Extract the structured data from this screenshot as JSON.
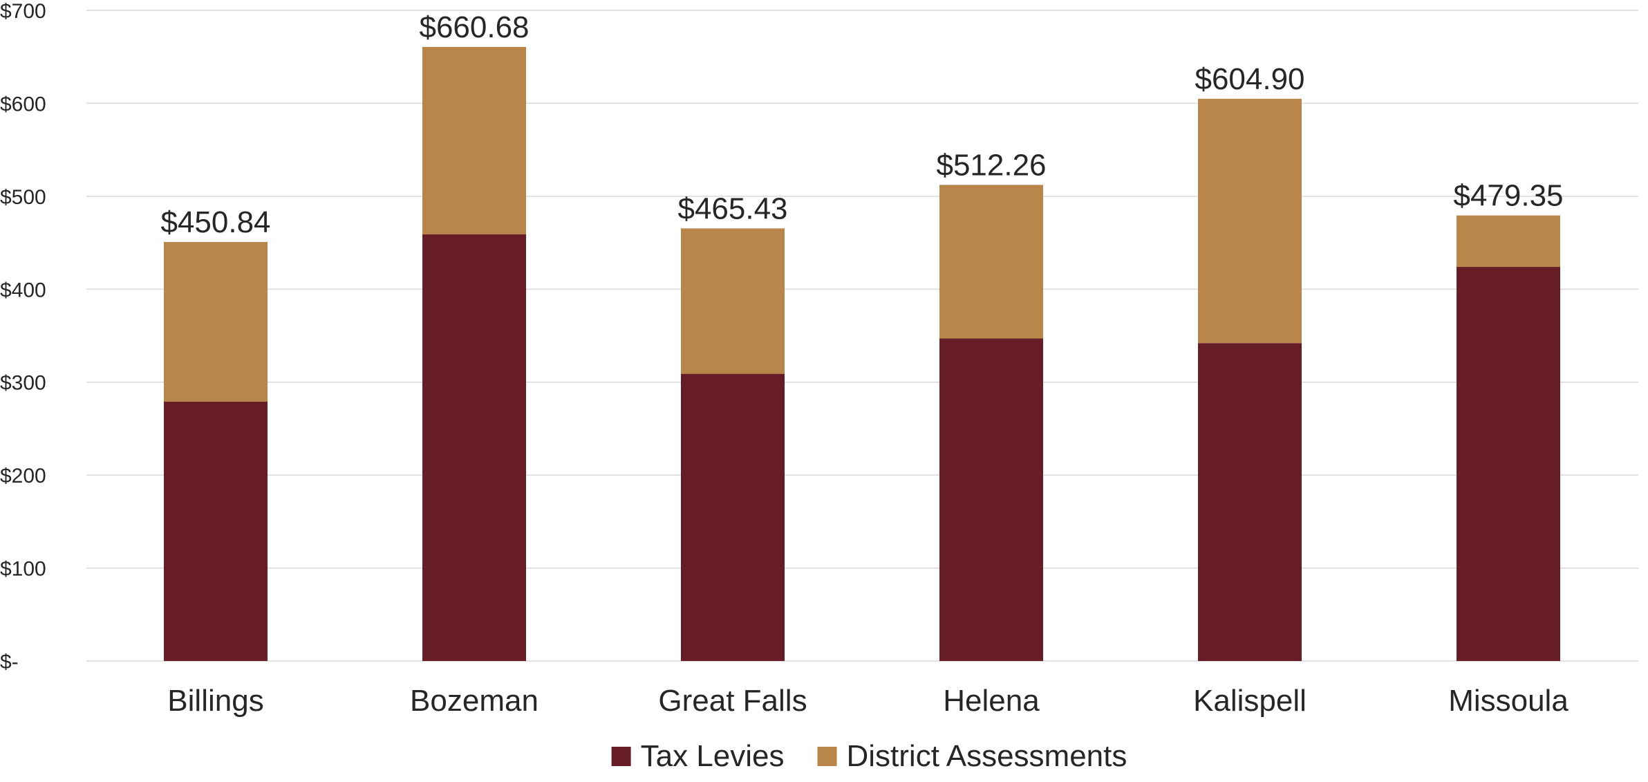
{
  "chart_data": {
    "type": "bar",
    "stacked": true,
    "categories": [
      "Billings",
      "Bozeman",
      "Great Falls",
      "Helena",
      "Kalispell",
      "Missoula"
    ],
    "series": [
      {
        "name": "Tax Levies",
        "color": "#661d26",
        "values": [
          279,
          459,
          309,
          347,
          342,
          424
        ]
      },
      {
        "name": "District Assessments",
        "color": "#b8864a",
        "values": [
          171.84,
          201.68,
          156.43,
          165.26,
          262.9,
          55.35
        ]
      }
    ],
    "totals": [
      450.84,
      660.68,
      465.43,
      512.26,
      604.9,
      479.35
    ],
    "total_labels": [
      "$450.84",
      "$660.68",
      "$465.43",
      "$512.26",
      "$604.90",
      "$479.35"
    ],
    "y_ticks": [
      0,
      100,
      200,
      300,
      400,
      500,
      600,
      700
    ],
    "y_tick_labels": [
      "$-",
      "$100",
      "$200",
      "$300",
      "$400",
      "$500",
      "$600",
      "$700"
    ],
    "ylim": [
      0,
      700
    ],
    "grid": true,
    "legend_position": "bottom",
    "title": "",
    "xlabel": "",
    "ylabel": ""
  }
}
